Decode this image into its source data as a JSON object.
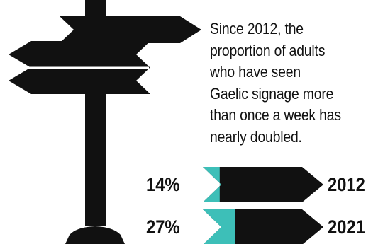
{
  "headline": {
    "lines": [
      "Since 2012, the",
      "proportion of adults",
      "who have seen",
      "Gaelic signage more",
      "than once a week has",
      "nearly doubled."
    ]
  },
  "stats": [
    {
      "percent_label": "14%",
      "year": "2012",
      "value": 14
    },
    {
      "percent_label": "27%",
      "year": "2021",
      "value": 27
    }
  ],
  "colors": {
    "ink": "#111111",
    "accent": "#3dbfb8",
    "background": "#ffffff"
  },
  "icons": {
    "signpost": "signpost-icon"
  }
}
